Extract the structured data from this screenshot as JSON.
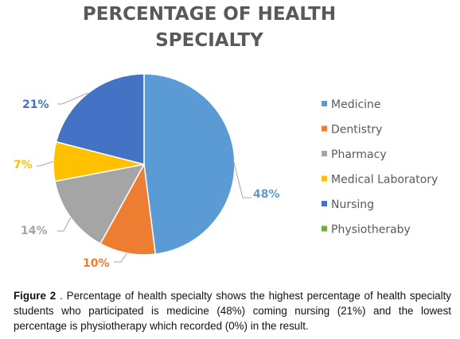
{
  "chart_data": {
    "type": "pie",
    "title_lines": [
      "PERCENTAGE OF HEALTH",
      "SPECIALTY"
    ],
    "categories": [
      "Medicine",
      "Dentistry",
      "Pharmacy",
      "Medical Laboratory",
      "Nursing",
      "Physiotheraby"
    ],
    "values": [
      48,
      10,
      14,
      7,
      21,
      0
    ],
    "labels": [
      "48%",
      "10%",
      "14%",
      "7%",
      "21%",
      ""
    ],
    "colors": [
      "#5B9BD5",
      "#ED7D31",
      "#A5A5A5",
      "#FFC000",
      "#4472C4",
      "#70AD47"
    ],
    "label_colors": [
      "#5B9BD5",
      "#ED7D31",
      "#A5A5A5",
      "#FFC000",
      "#4472C4",
      "#70AD47"
    ],
    "legend_position": "right"
  },
  "caption": {
    "label": "Figure 2",
    "text": " . Percentage of health specialty shows the highest percentage of health specialty students who participated is medicine (48%) coming nursing (21%) and the lowest percentage is physiotherapy which recorded (0%) in the result."
  }
}
